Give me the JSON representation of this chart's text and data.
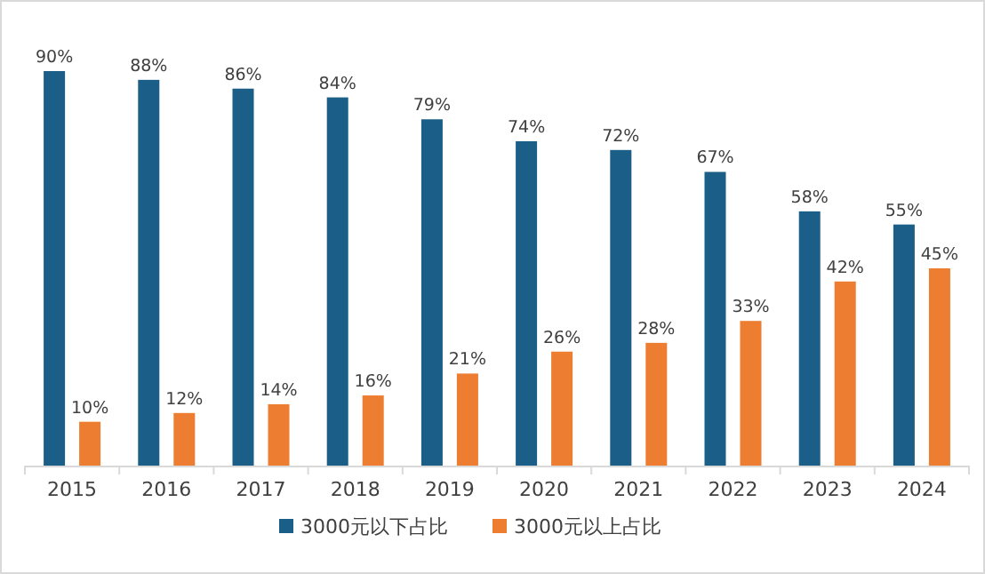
{
  "chart_data": {
    "type": "bar",
    "categories": [
      "2015",
      "2016",
      "2017",
      "2018",
      "2019",
      "2020",
      "2021",
      "2022",
      "2023",
      "2024"
    ],
    "series": [
      {
        "name": "3000元以下占比",
        "color": "#1b5e87",
        "values": [
          90,
          88,
          86,
          84,
          79,
          74,
          72,
          67,
          58,
          55
        ],
        "value_labels": [
          "90%",
          "88%",
          "86%",
          "84%",
          "79%",
          "74%",
          "72%",
          "67%",
          "58%",
          "55%"
        ]
      },
      {
        "name": "3000元以上占比",
        "color": "#ed7d31",
        "values": [
          10,
          12,
          14,
          16,
          21,
          26,
          28,
          33,
          42,
          45
        ],
        "value_labels": [
          "10%",
          "12%",
          "14%",
          "16%",
          "21%",
          "26%",
          "28%",
          "33%",
          "42%",
          "45%"
        ]
      }
    ],
    "legend": "bottom",
    "grid": false
  }
}
